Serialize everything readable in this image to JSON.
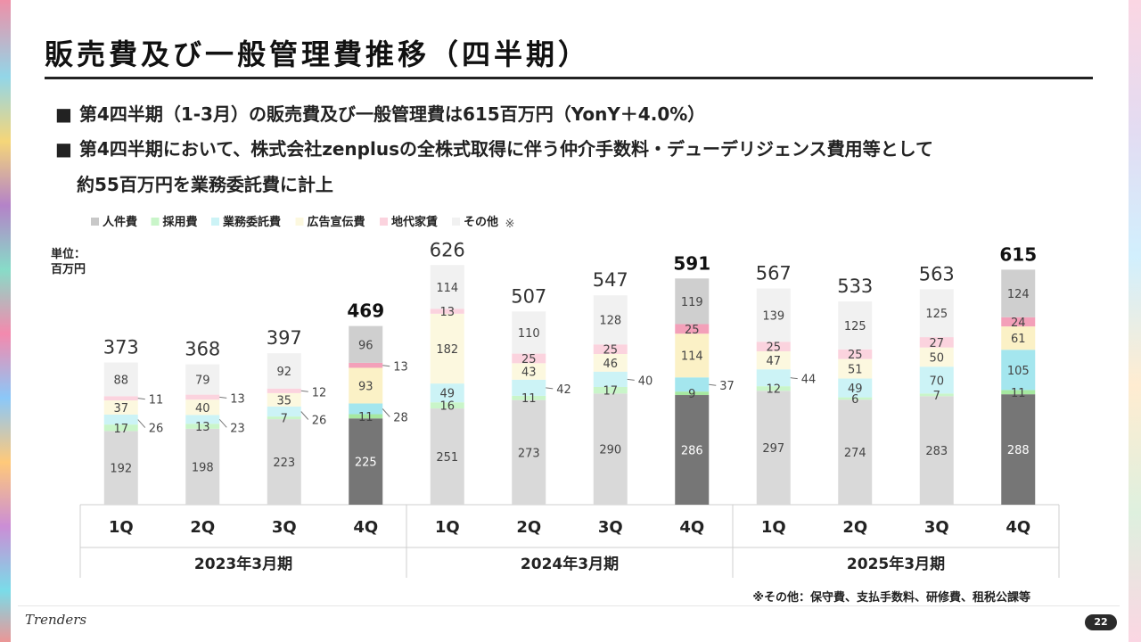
{
  "page": {
    "title": "販売費及び一般管理費推移（四半期）",
    "bullets": [
      "第4四半期（1-3月）の販売費及び一般管理費は615百万円（YonY＋4.0%）",
      "第4四半期において、株式会社zenplusの全株式取得に伴う仲介手数料・デューデリジェンス費用等として",
      "約55百万円を業務委託費に計上"
    ],
    "bullet_marker": "■",
    "unit_line1": "単位：",
    "unit_line2": "百万円",
    "footnote": "※その他：保守費、支払手数料、研修費、租税公課等",
    "logo": "Trenders",
    "page_number": "22"
  },
  "chart_data": {
    "type": "bar",
    "stacked": true,
    "legend_position": "top-left",
    "legend_note": "※",
    "ylim": [
      0,
      626
    ],
    "categories": [
      "1Q",
      "2Q",
      "3Q",
      "4Q",
      "1Q",
      "2Q",
      "3Q",
      "4Q",
      "1Q",
      "2Q",
      "3Q",
      "4Q"
    ],
    "groups": [
      {
        "label": "2023年3月期",
        "count": 4
      },
      {
        "label": "2024年3月期",
        "count": 4
      },
      {
        "label": "2025年3月期",
        "count": 4
      }
    ],
    "totals": [
      373,
      368,
      397,
      469,
      626,
      507,
      547,
      591,
      567,
      533,
      563,
      615
    ],
    "highlight": [
      false,
      false,
      false,
      true,
      false,
      false,
      false,
      true,
      false,
      false,
      false,
      true
    ],
    "series": [
      {
        "name": "人件費",
        "color": "#d9d9d9",
        "highlight_color": "#767676",
        "values": [
          192,
          198,
          223,
          225,
          251,
          273,
          290,
          286,
          297,
          274,
          283,
          288
        ]
      },
      {
        "name": "採用費",
        "color": "#c9f5c9",
        "highlight_color": "#a6e8a0",
        "values": [
          17,
          13,
          7,
          11,
          16,
          11,
          17,
          9,
          12,
          6,
          7,
          11
        ]
      },
      {
        "name": "業務委託費",
        "color": "#ccf3f6",
        "highlight_color": "#a4e6ee",
        "values": [
          26,
          23,
          26,
          28,
          49,
          42,
          40,
          37,
          44,
          49,
          70,
          105
        ]
      },
      {
        "name": "広告宣伝費",
        "color": "#fcf8df",
        "highlight_color": "#fbf1c6",
        "values": [
          37,
          40,
          35,
          93,
          182,
          43,
          46,
          114,
          47,
          51,
          50,
          61
        ]
      },
      {
        "name": "地代家賃",
        "color": "#fbd3de",
        "highlight_color": "#f3a0b9",
        "values": [
          11,
          13,
          12,
          13,
          13,
          25,
          25,
          25,
          25,
          25,
          27,
          24
        ]
      },
      {
        "name": "その他",
        "color": "#f1f1f1",
        "highlight_color": "#cfcfcf",
        "values": [
          88,
          79,
          92,
          96,
          114,
          110,
          128,
          119,
          139,
          125,
          125,
          124
        ]
      }
    ]
  }
}
